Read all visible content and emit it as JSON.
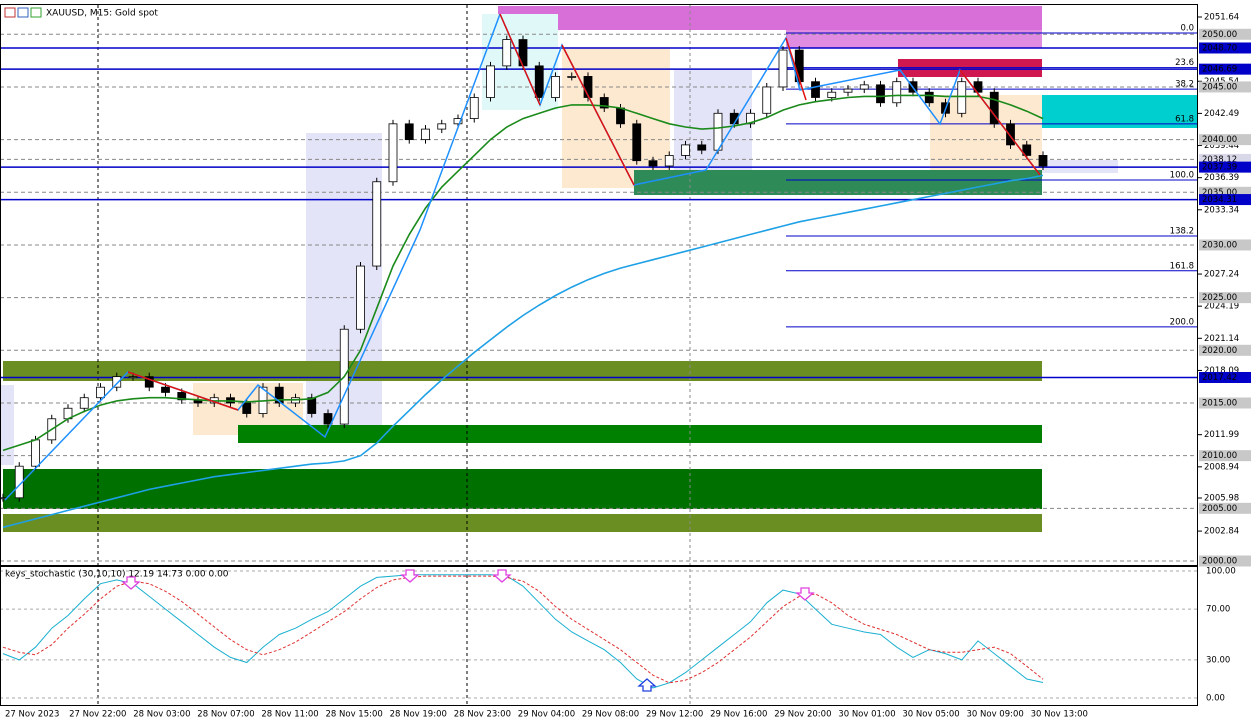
{
  "chart_data": {
    "type": "candlestick",
    "title": "XAUUSD, M15:  Gold spot",
    "indicator_title": "keys_stochastic (30,10,10) 12.19 14.73 0.00 0.00",
    "xticks": [
      "27 Nov 2023",
      "27 Nov 22:00",
      "28 Nov 03:00",
      "28 Nov 07:00",
      "28 Nov 11:00",
      "28 Nov 15:00",
      "28 Nov 19:00",
      "28 Nov 23:00",
      "29 Nov 04:00",
      "29 Nov 08:00",
      "29 Nov 12:00",
      "29 Nov 16:00",
      "29 Nov 20:00",
      "30 Nov 01:00",
      "30 Nov 05:00",
      "30 Nov 09:00",
      "30 Nov 13:00"
    ],
    "ylim": [
      1999.62,
      2052.78
    ],
    "yticks": [
      2051.64,
      2045.54,
      2042.49,
      2039.44,
      2036.39,
      2033.34,
      2027.24,
      2024.19,
      2021.14,
      2018.09,
      2011.99,
      2008.94,
      2005.98,
      2002.84
    ],
    "close": [
      2006,
      2009,
      2011.5,
      2013.5,
      2014.5,
      2015.5,
      2016.5,
      2017.5,
      2017.5,
      2016.5,
      2016,
      2015.3,
      2015,
      2015.5,
      2015,
      2014,
      2016.5,
      2015,
      2015.5,
      2014,
      2013,
      2022,
      2028,
      2036,
      2041.5,
      2040,
      2041,
      2041.5,
      2042,
      2044,
      2047,
      2049.5,
      2047,
      2044,
      2046,
      2046,
      2044,
      2043,
      2041.5,
      2038,
      2037.5,
      2038.5,
      2039.5,
      2039,
      2042.5,
      2041.5,
      2042.5,
      2045,
      2048.5,
      2045.5,
      2044,
      2044.5,
      2044.8,
      2045.2,
      2043.5,
      2045.5,
      2044.5,
      2043.5,
      2042.5,
      2045.5,
      2044.5,
      2041.5,
      2039.5,
      2038.5,
      2037.5
    ],
    "series": [
      {
        "color": "#1a8a1a",
        "values": [
          2010.5,
          2011,
          2011.5,
          2012.5,
          2013.5,
          2014.2,
          2014.8,
          2015.2,
          2015.4,
          2015.5,
          2015.5,
          2015.4,
          2015.3,
          2015.2,
          2015.2,
          2015.1,
          2015.2,
          2015.3,
          2015.3,
          2015.4,
          2016,
          2017.5,
          2020,
          2024,
          2028,
          2031,
          2033.5,
          2035.5,
          2037,
          2038.5,
          2040,
          2041.2,
          2042,
          2042.5,
          2043,
          2043.3,
          2043.3,
          2043.2,
          2043,
          2042.5,
          2042,
          2041.5,
          2041.2,
          2041,
          2041.1,
          2041.3,
          2041.6,
          2042.1,
          2042.8,
          2043.3,
          2043.6,
          2043.8,
          2044,
          2044.1,
          2044.1,
          2044.2,
          2044.2,
          2044.2,
          2044.1,
          2044.1,
          2044.1,
          2043.8,
          2043.3,
          2042.7,
          2042
        ]
      },
      {
        "color": "#1ea0e6",
        "values": [
          2003.2,
          2003.6,
          2004,
          2004.4,
          2004.8,
          2005.2,
          2005.6,
          2006,
          2006.4,
          2006.8,
          2007.1,
          2007.4,
          2007.7,
          2008,
          2008.2,
          2008.4,
          2008.6,
          2008.8,
          2009,
          2009.2,
          2009.3,
          2009.5,
          2010,
          2011.2,
          2012.8,
          2014.3,
          2015.8,
          2017.2,
          2018.5,
          2019.8,
          2021,
          2022.2,
          2023.3,
          2024.3,
          2025.2,
          2026,
          2026.7,
          2027.3,
          2027.8,
          2028.2,
          2028.6,
          2029,
          2029.4,
          2029.8,
          2030.2,
          2030.6,
          2031,
          2031.4,
          2031.8,
          2032.2,
          2032.5,
          2032.8,
          2033.1,
          2033.4,
          2033.7,
          2034,
          2034.3,
          2034.6,
          2034.9,
          2035.2,
          2035.5,
          2035.8,
          2036.1,
          2036.3,
          2036.6
        ]
      }
    ],
    "marked_levels": [
      {
        "value": 2050,
        "label": "2050.00",
        "style": "grey"
      },
      {
        "value": 2048.7,
        "label": "2048.70",
        "style": "blue"
      },
      {
        "value": 2046.69,
        "label": "2046.69",
        "style": "blue"
      },
      {
        "value": 2045,
        "label": "2045.00",
        "style": "grey"
      },
      {
        "value": 2040,
        "label": "2040.00",
        "style": "grey"
      },
      {
        "value": 2038.12,
        "label": "2038.12",
        "style": "light"
      },
      {
        "value": 2037.39,
        "label": "2037.39",
        "style": "blue"
      },
      {
        "value": 2035,
        "label": "2035.00",
        "style": "grey"
      },
      {
        "value": 2034.31,
        "label": "2034.31",
        "style": "blue"
      },
      {
        "value": 2030,
        "label": "2030.00",
        "style": "grey"
      },
      {
        "value": 2025,
        "label": "2025.00",
        "style": "grey"
      },
      {
        "value": 2020,
        "label": "2020.00",
        "style": "grey"
      },
      {
        "value": 2017.42,
        "label": "2017.42",
        "style": "blue"
      },
      {
        "value": 2015,
        "label": "2015.00",
        "style": "grey"
      },
      {
        "value": 2010,
        "label": "2010.00",
        "style": "grey"
      },
      {
        "value": 2005,
        "label": "2005.00",
        "style": "grey"
      },
      {
        "value": 2000,
        "label": "2000.00",
        "style": "grey"
      }
    ],
    "fib_levels": [
      {
        "value": 2050.12,
        "label": "0.0"
      },
      {
        "value": 2046.83,
        "label": "23.6"
      },
      {
        "value": 2044.79,
        "label": "38.2"
      },
      {
        "value": 2041.5,
        "label": "61.8"
      },
      {
        "value": 2036.17,
        "label": "100.0"
      },
      {
        "value": 2030.85,
        "label": "138.2"
      },
      {
        "value": 2027.55,
        "label": "161.8"
      },
      {
        "value": 2022.22,
        "label": "200.0"
      }
    ],
    "stochastic": {
      "ylim": [
        -5.5,
        103.15
      ],
      "yticks": [
        {
          "value": 100,
          "label": "100.00"
        },
        {
          "value": 70,
          "label": "70.00"
        },
        {
          "value": 30,
          "label": "30.00"
        },
        {
          "value": 0,
          "label": "0.00"
        }
      ],
      "main": {
        "color": "#1ab0d0",
        "values": [
          35,
          30,
          40,
          55,
          65,
          78,
          90,
          93,
          90,
          80,
          70,
          60,
          50,
          40,
          32,
          28,
          40,
          50,
          55,
          62,
          68,
          78,
          88,
          95,
          96,
          97,
          97,
          97,
          97,
          97,
          97,
          96,
          88,
          75,
          62,
          52,
          45,
          38,
          28,
          15,
          8,
          12,
          20,
          30,
          40,
          50,
          60,
          75,
          85,
          82,
          70,
          58,
          55,
          52,
          50,
          40,
          32,
          38,
          35,
          30,
          45,
          35,
          25,
          15,
          12.19
        ]
      },
      "signal": {
        "color": "#e03030",
        "values": [
          40,
          36,
          34,
          42,
          55,
          66,
          78,
          88,
          92,
          90,
          84,
          76,
          66,
          56,
          46,
          38,
          34,
          38,
          44,
          52,
          60,
          68,
          78,
          87,
          93,
          95,
          96,
          96,
          96,
          96,
          96,
          95,
          92,
          84,
          72,
          62,
          54,
          46,
          38,
          28,
          18,
          12,
          14,
          20,
          28,
          38,
          48,
          60,
          72,
          80,
          82,
          75,
          65,
          58,
          54,
          50,
          44,
          38,
          36,
          36,
          38,
          40,
          35,
          25,
          14.73
        ]
      }
    }
  }
}
